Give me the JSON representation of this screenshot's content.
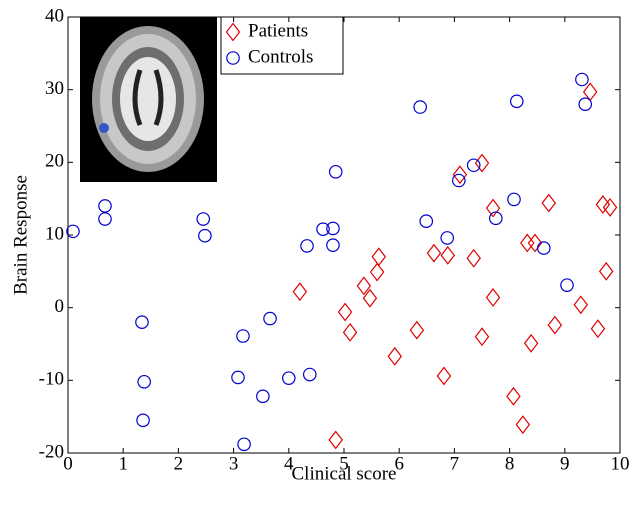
{
  "chart_data": {
    "type": "scatter",
    "xlabel": "Clinical score",
    "ylabel": "Brain Response",
    "xlim": [
      0,
      10
    ],
    "ylim": [
      -20,
      40
    ],
    "xticks": [
      0,
      1,
      2,
      3,
      4,
      5,
      6,
      7,
      8,
      9,
      10
    ],
    "yticks": [
      -20,
      -10,
      0,
      10,
      20,
      30,
      40
    ],
    "legend": "upper-center",
    "series": [
      {
        "name": "Patients",
        "color": "#e00000",
        "marker": "diamond",
        "x": [
          4.2,
          4.85,
          5.02,
          5.11,
          5.36,
          5.47,
          5.6,
          5.63,
          5.92,
          6.32,
          6.63,
          6.81,
          6.88,
          7.35,
          7.1,
          7.5,
          7.5,
          7.7,
          7.7,
          8.07,
          8.24,
          8.32,
          8.39,
          8.46,
          8.71,
          8.82,
          9.29,
          9.46,
          9.6,
          9.69,
          9.75,
          9.82
        ],
        "values": [
          2.2,
          -18.2,
          -0.6,
          -3.4,
          3.0,
          1.3,
          4.9,
          7.0,
          -6.7,
          -3.1,
          7.5,
          -9.4,
          7.2,
          6.8,
          18.3,
          19.9,
          -4.0,
          13.7,
          1.4,
          -12.2,
          -16.1,
          8.9,
          -4.9,
          8.9,
          14.4,
          -2.4,
          0.4,
          29.7,
          -2.9,
          14.2,
          5.0,
          13.8
        ]
      },
      {
        "name": "Controls",
        "color": "#0000d0",
        "marker": "circle",
        "x": [
          0.09,
          0.67,
          0.67,
          1.34,
          1.38,
          1.36,
          2.45,
          2.48,
          3.08,
          3.17,
          3.19,
          3.53,
          3.66,
          4.0,
          4.38,
          4.33,
          4.62,
          4.8,
          4.8,
          4.85,
          6.38,
          6.49,
          6.87,
          7.08,
          7.35,
          7.75,
          8.08,
          8.13,
          8.62,
          9.04,
          9.31,
          9.37
        ],
        "values": [
          10.5,
          14.0,
          12.2,
          -2.0,
          -10.2,
          -15.5,
          12.2,
          9.9,
          -9.6,
          -3.9,
          -18.8,
          -12.2,
          -1.5,
          -9.7,
          -9.2,
          8.5,
          10.8,
          10.9,
          8.6,
          18.7,
          27.6,
          11.9,
          9.6,
          17.5,
          19.6,
          12.3,
          14.9,
          28.4,
          8.2,
          3.1,
          31.4,
          28.0
        ]
      }
    ]
  }
}
